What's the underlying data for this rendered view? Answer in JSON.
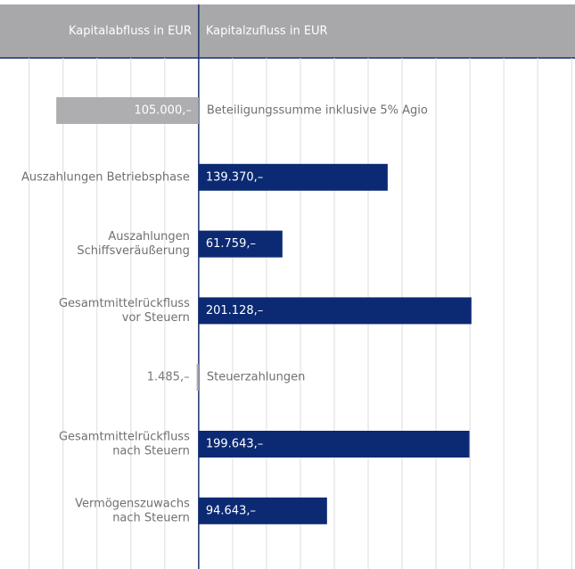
{
  "chart_data": {
    "type": "diverging-bar",
    "categories": [
      [
        "Beteiligungssumme inklusive 5% Agio"
      ],
      [
        "Auszahlungen Betriebsphase"
      ],
      [
        "Auszahlungen",
        "Schiffsveräußerung"
      ],
      [
        "Gesamtmittelrückfluss",
        "vor Steuern"
      ],
      [
        "Steuerzahlungen"
      ],
      [
        "Gesamtmittelrückfluss",
        "nach Steuern"
      ],
      [
        "Vermögenszuwachs",
        "nach Steuern"
      ]
    ],
    "series": [
      {
        "name": "Kapitalabfluss in EUR",
        "color": "#aeaeb0",
        "side": "left",
        "values": [
          105000,
          null,
          null,
          null,
          1485,
          null,
          null
        ],
        "value_labels": [
          "105.000,–",
          null,
          null,
          null,
          "1.485,–",
          null,
          null
        ]
      },
      {
        "name": "Kapitalzufluss in EUR",
        "color": "#0c2a73",
        "side": "right",
        "values": [
          null,
          139370,
          61759,
          201128,
          null,
          199643,
          94643
        ],
        "value_labels": [
          null,
          "139.370,–",
          "61.759,–",
          "201.128,–",
          null,
          "199.643,–",
          "94.643,–"
        ]
      }
    ],
    "xlim": [
      -146500,
      277500
    ],
    "xticks": [
      -125000,
      -100000,
      -75000,
      -50000,
      -25000,
      25000,
      50000,
      75000,
      100000,
      125000,
      150000,
      175000,
      200000,
      225000,
      250000,
      275000
    ],
    "grid": true
  }
}
